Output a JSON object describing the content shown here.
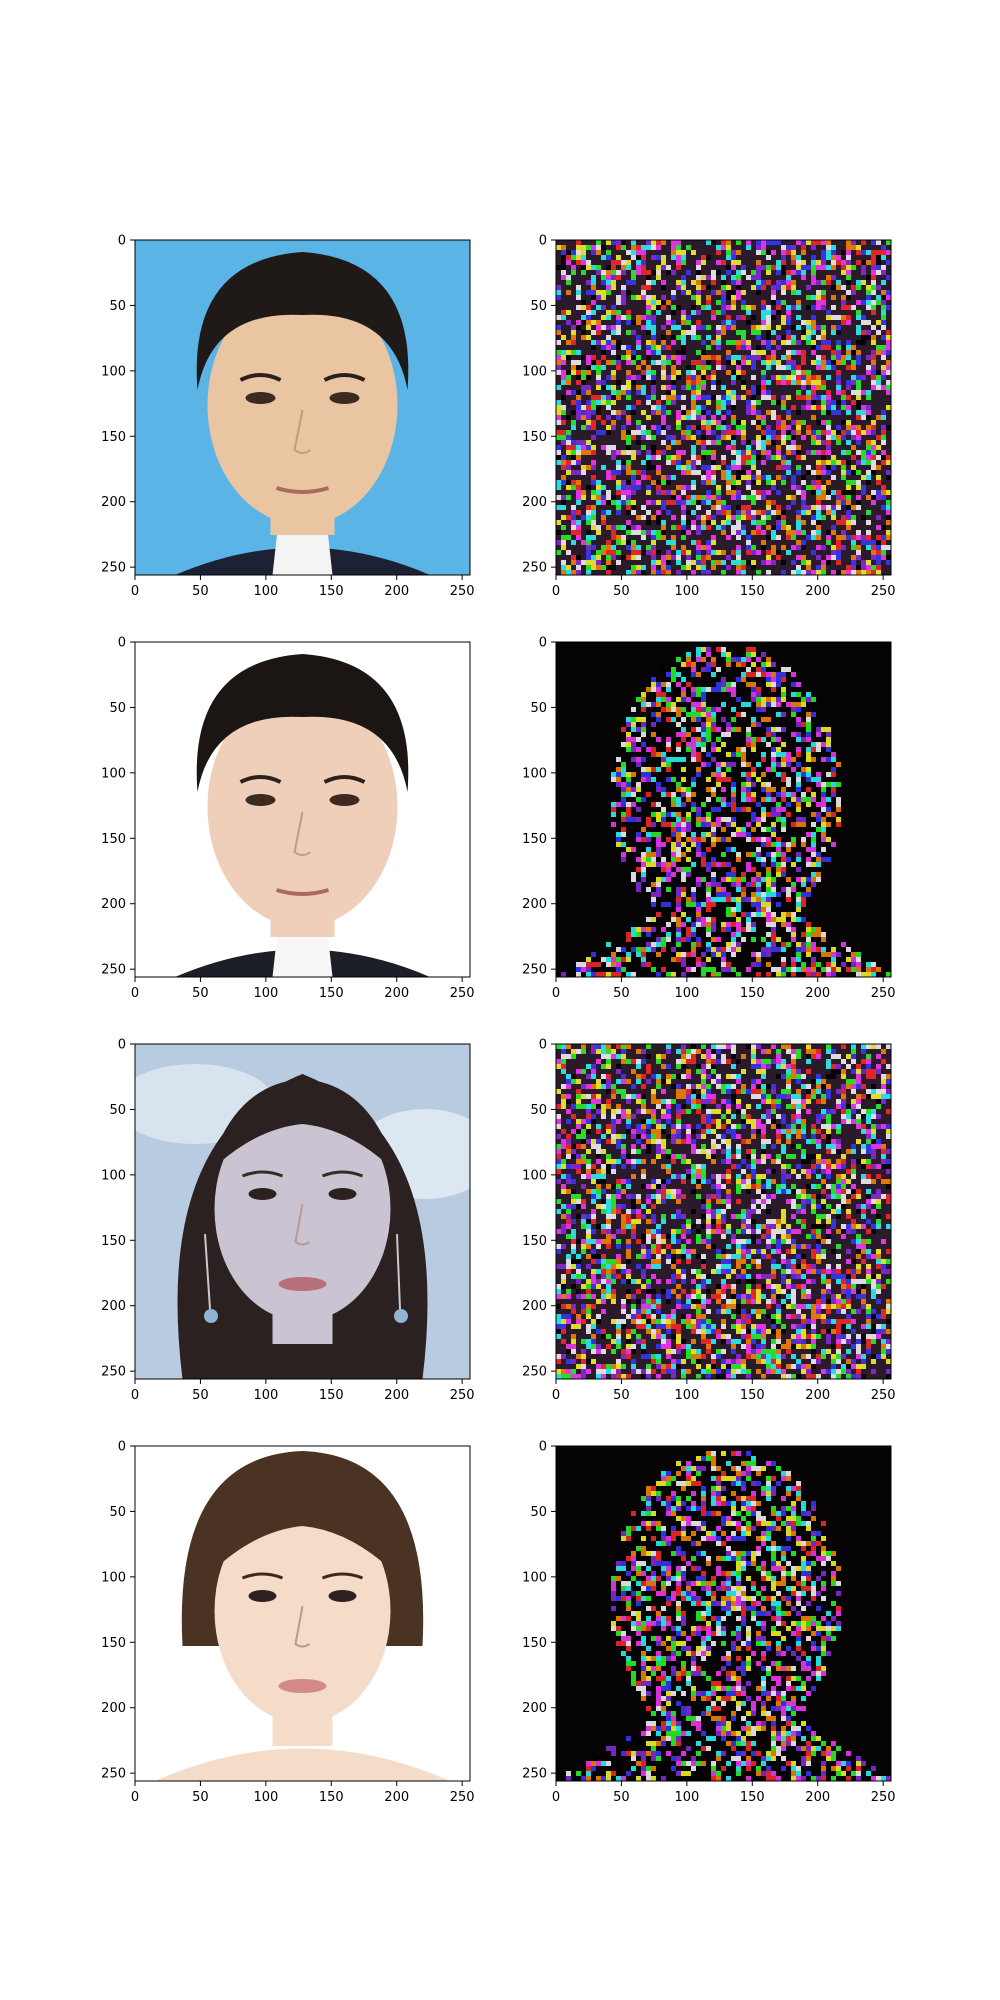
{
  "figure": {
    "rows": [
      {
        "id": "row-1",
        "left": {
          "subject": "man-blue-background",
          "bg": "#5ab4e6",
          "skin": "#e9c6a1",
          "hair": "#1f1a18",
          "suit": "#1c2233",
          "shirt": "#f4f4f4"
        },
        "right": {
          "subject": "noise-full",
          "bg": "#2a1a2a"
        }
      },
      {
        "id": "row-2",
        "left": {
          "subject": "man-white-background",
          "bg": "#ffffff",
          "skin": "#efcfb9",
          "hair": "#1b1614",
          "suit": "#1c1f27",
          "shirt": "#f7f7f7"
        },
        "right": {
          "subject": "noise-head-silhouette",
          "bg": "#050304"
        }
      },
      {
        "id": "row-3",
        "left": {
          "subject": "woman-sky-background",
          "bg": "#b8cbe0",
          "skin": "#c9c3d2",
          "hair": "#2a2120",
          "lips": "#b76f78"
        },
        "right": {
          "subject": "noise-full",
          "bg": "#2a1a2a"
        }
      },
      {
        "id": "row-4",
        "left": {
          "subject": "woman-white-background",
          "bg": "#ffffff",
          "skin": "#f4dcc9",
          "hair": "#4a3323",
          "lips": "#d58a8a"
        },
        "right": {
          "subject": "noise-head-silhouette",
          "bg": "#050304"
        }
      }
    ],
    "ticks": {
      "x": [
        "0",
        "50",
        "100",
        "150",
        "200",
        "250"
      ],
      "y": [
        "0",
        "50",
        "100",
        "150",
        "200",
        "250"
      ]
    },
    "axis_range": {
      "x": [
        0,
        256
      ],
      "y": [
        256,
        0
      ]
    },
    "noise_colors": [
      "#ff2a2a",
      "#2aff2a",
      "#3a3aff",
      "#ff3aff",
      "#ffffff",
      "#2affff",
      "#ffff2a",
      "#8a2be2",
      "#000000",
      "#ff8a00"
    ]
  }
}
